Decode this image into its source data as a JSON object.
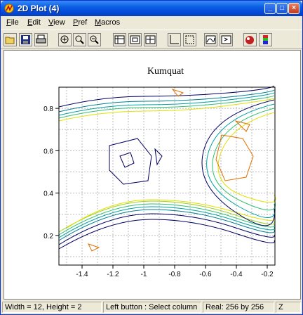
{
  "window": {
    "title": "2D Plot (4)",
    "buttons": [
      "_",
      "□",
      "×"
    ]
  },
  "menu": {
    "items": [
      {
        "label": "File",
        "u": "F",
        "rest": "ile"
      },
      {
        "label": "Edit",
        "u": "E",
        "rest": "dit"
      },
      {
        "label": "View",
        "u": "V",
        "rest": "iew"
      },
      {
        "label": "Pref",
        "u": "P",
        "rest": "ref"
      },
      {
        "label": "Macros",
        "u": "M",
        "rest": "acros"
      }
    ]
  },
  "toolbar": {
    "tools": [
      "open-icon",
      "save-icon",
      "print-icon",
      "zoom-in-icon",
      "zoom-out-icon",
      "zoom-fit-icon",
      "table-icon",
      "grid-icon",
      "crosshair-icon",
      "axes-icon",
      "frame-icon",
      "contour-icon",
      "export-icon",
      "palette-icon",
      "colorbar-icon"
    ]
  },
  "chart_data": {
    "type": "contour",
    "title": "Kumquat",
    "xlabel": "",
    "ylabel": "",
    "xlim": [
      -1.55,
      -0.15
    ],
    "ylim": [
      0.06,
      0.9
    ],
    "x_ticks": [
      "-1.4",
      "-1.2",
      "-1",
      "-0.8",
      "-0.6",
      "-0.4",
      "-0.2"
    ],
    "y_ticks": [
      "0.2",
      "0.4",
      "0.6",
      "0.8"
    ],
    "grid": true,
    "colors": {
      "level_low": "#000060",
      "level_mid": "#00a0a0",
      "level_high": "#e07000"
    }
  },
  "status": {
    "size": "Width = 12, Height =  2",
    "hint": "Left button : Select column",
    "real": "Real: 256 by 256",
    "mode": "Z"
  }
}
